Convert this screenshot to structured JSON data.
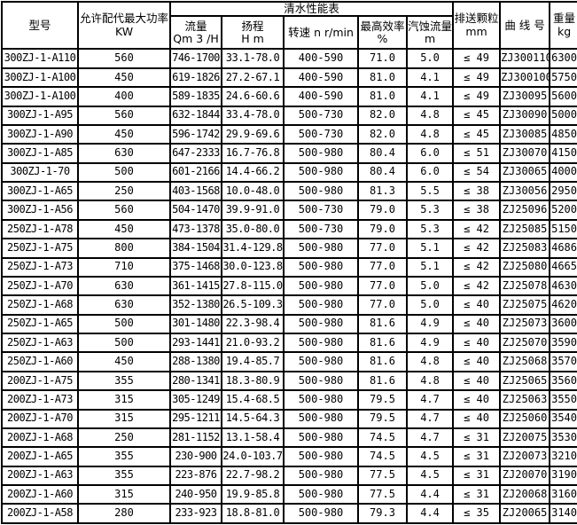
{
  "table": {
    "headers": {
      "model": "型号",
      "power1": "允许配代最大功率",
      "power2": "KW",
      "perf_title": "清水性能表",
      "flow1": "流量",
      "flow2": "Qm 3 /H",
      "head1": "扬程",
      "head2": "H m",
      "speed": "转速 n r/min",
      "eff1": "最高效率",
      "eff2": "%",
      "npsh1": "汽蚀流量",
      "npsh2": "m",
      "particle1": "排送颗粒",
      "particle2": "mm",
      "curve": "曲 线 号",
      "weight1": "重量",
      "weight2": "kg"
    },
    "rows": [
      [
        "300ZJ-1-A110",
        "560",
        "746-1700",
        "33.1-78.0",
        "400-590",
        "71.0",
        "5.0",
        "≤ 49",
        "ZJ300110",
        "6300"
      ],
      [
        "300ZJ-1-A100",
        "450",
        "619-1826",
        "27.2-67.1",
        "400-590",
        "81.0",
        "4.1",
        "≤ 49",
        "ZJ300100",
        "5750"
      ],
      [
        "300ZJ-1-A100",
        "400",
        "589-1835",
        "24.6-60.6",
        "400-590",
        "81.0",
        "4.1",
        "≤ 49",
        "ZJ30095",
        "5600"
      ],
      [
        "300ZJ-1-A95",
        "560",
        "632-1844",
        "33.4-78.0",
        "500-730",
        "82.0",
        "4.8",
        "≤ 45",
        "ZJ30090",
        "5000"
      ],
      [
        "300ZJ-1-A90",
        "450",
        "596-1742",
        "29.9-69.6",
        "500-730",
        "82.0",
        "4.8",
        "≤ 45",
        "ZJ30085",
        "4850"
      ],
      [
        "300ZJ-1-A85",
        "630",
        "647-2333",
        "16.7-76.8",
        "500-980",
        "80.4",
        "6.0",
        "≤ 51",
        "ZJ30070",
        "4150"
      ],
      [
        "300ZJ-1-70",
        "500",
        "601-2166",
        "14.4-66.2",
        "500-980",
        "80.4",
        "6.0",
        "≤ 54",
        "ZJ30065",
        "4000"
      ],
      [
        "300ZJ-1-A65",
        "250",
        "403-1568",
        "10.0-48.0",
        "500-980",
        "81.3",
        "5.5",
        "≤ 38",
        "ZJ30056",
        "2950"
      ],
      [
        "300ZJ-1-A56",
        "560",
        "504-1470",
        "39.9-91.0",
        "500-730",
        "79.0",
        "5.3",
        "≤ 38",
        "ZJ25096",
        "5200"
      ],
      [
        "250ZJ-1-A78",
        "450",
        "473-1378",
        "35.0-80.0",
        "500-730",
        "79.0",
        "5.3",
        "≤ 42",
        "ZJ25085",
        "5150"
      ],
      [
        "250ZJ-1-A75",
        "800",
        "384-1504",
        "31.4-129.8",
        "500-980",
        "77.0",
        "5.1",
        "≤ 42",
        "ZJ25083",
        "4686"
      ],
      [
        "250ZJ-1-A73",
        "710",
        "375-1468",
        "30.0-123.8",
        "500-980",
        "77.0",
        "5.1",
        "≤ 42",
        "ZJ25080",
        "4665"
      ],
      [
        "250ZJ-1-A70",
        "630",
        "361-1415",
        "27.8-115.0",
        "500-980",
        "77.0",
        "5.0",
        "≤ 42",
        "ZJ25078",
        "4630"
      ],
      [
        "250ZJ-1-A68",
        "630",
        "352-1380",
        "26.5-109.3",
        "500-980",
        "77.0",
        "5.0",
        "≤ 40",
        "ZJ25075",
        "4620"
      ],
      [
        "250ZJ-1-A65",
        "500",
        "301-1480",
        "22.3-98.4",
        "500-980",
        "81.6",
        "4.9",
        "≤ 40",
        "ZJ25073",
        "3600"
      ],
      [
        "250ZJ-1-A63",
        "500",
        "293-1441",
        "21.0-93.2",
        "500-980",
        "81.6",
        "4.9",
        "≤ 40",
        "ZJ25070",
        "3590"
      ],
      [
        "250ZJ-1-A60",
        "450",
        "288-1380",
        "19.4-85.7",
        "500-980",
        "81.6",
        "4.8",
        "≤ 40",
        "ZJ25068",
        "3570"
      ],
      [
        "200ZJ-1-A75",
        "355",
        "280-1341",
        "18.3-80.9",
        "500-980",
        "81.6",
        "4.8",
        "≤ 40",
        "ZJ25065",
        "3560"
      ],
      [
        "200ZJ-1-A73",
        "315",
        "305-1249",
        "15.4-68.5",
        "500-980",
        "79.5",
        "4.7",
        "≤ 40",
        "ZJ25063",
        "3550"
      ],
      [
        "200ZJ-1-A70",
        "315",
        "295-1211",
        "14.5-64.3",
        "500-980",
        "79.5",
        "4.7",
        "≤ 40",
        "ZJ25060",
        "3540"
      ],
      [
        "200ZJ-1-A68",
        "250",
        "281-1152",
        "13.1-58.4",
        "500-980",
        "74.5",
        "4.7",
        "≤ 31",
        "ZJ20075",
        "3530"
      ],
      [
        "200ZJ-1-A65",
        "355",
        "230-900",
        "24.0-103.7",
        "500-980",
        "74.5",
        "4.5",
        "≤ 31",
        "ZJ20073",
        "3210"
      ],
      [
        "200ZJ-1-A63",
        "355",
        "223-876",
        "22.7-98.2",
        "500-980",
        "77.5",
        "4.5",
        "≤ 31",
        "ZJ20070",
        "3190"
      ],
      [
        "200ZJ-1-A60",
        "315",
        "240-950",
        "19.9-85.8",
        "500-980",
        "77.5",
        "4.4",
        "≤ 31",
        "ZJ20068",
        "3160"
      ],
      [
        "200ZJ-1-A58",
        "280",
        "233-923",
        "18.8-81.0",
        "500-980",
        "79.3",
        "4.4",
        "≤ 35",
        "ZJ20065",
        "3140"
      ]
    ]
  }
}
